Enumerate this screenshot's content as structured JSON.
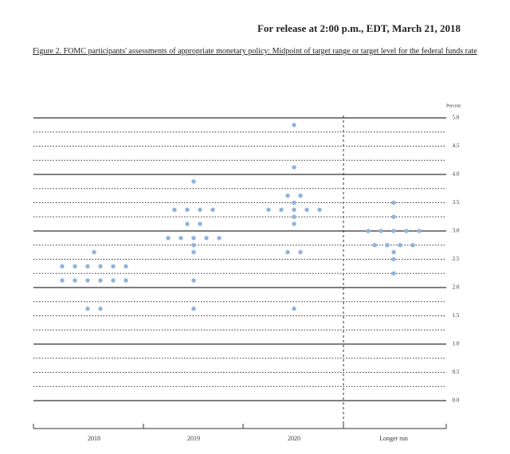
{
  "header": {
    "release": "For release at 2:00 p.m., EDT, March 21, 2018",
    "caption": "Figure 2. FOMC participants' assessments of appropriate monetary policy: Midpoint of target range or target level for the federal funds rate"
  },
  "chart_data": {
    "type": "dot",
    "y_label": "Percent",
    "color": "#8fb3dd",
    "categories": [
      "2018",
      "2019",
      "2020",
      "Longer run"
    ],
    "values": [
      [
        2.625,
        2.375,
        2.375,
        2.375,
        2.375,
        2.375,
        2.375,
        2.125,
        2.125,
        2.125,
        2.125,
        2.125,
        2.125,
        1.625,
        1.625
      ],
      [
        3.875,
        3.375,
        3.375,
        3.375,
        3.375,
        3.125,
        3.125,
        2.875,
        2.875,
        2.875,
        2.875,
        2.875,
        2.75,
        2.625,
        2.125,
        1.625
      ],
      [
        4.875,
        4.125,
        3.625,
        3.625,
        3.5,
        3.375,
        3.375,
        3.375,
        3.375,
        3.375,
        3.25,
        3.125,
        2.625,
        2.625,
        1.625
      ],
      [
        3.5,
        3.25,
        3.0,
        3.0,
        3.0,
        3.0,
        3.0,
        2.75,
        2.75,
        2.75,
        2.75,
        2.625,
        2.5,
        2.25
      ]
    ],
    "ylim": [
      0,
      5
    ],
    "yticks": [
      {
        "value": 0,
        "label": "0.0"
      },
      0.5,
      {
        "value": 1,
        "label": "1.0"
      },
      1.5,
      {
        "value": 2,
        "label": "2.0"
      },
      2.5,
      {
        "value": 3,
        "label": "3.0"
      },
      3.5,
      {
        "value": 4,
        "label": "4.0"
      },
      4.5,
      {
        "value": 5,
        "label": "5.0"
      }
    ],
    "minor_yticks": [
      0.25,
      0.75,
      1.25,
      1.75,
      2.25,
      2.75,
      3.25,
      3.75,
      4.25,
      4.75
    ],
    "grid": true
  }
}
